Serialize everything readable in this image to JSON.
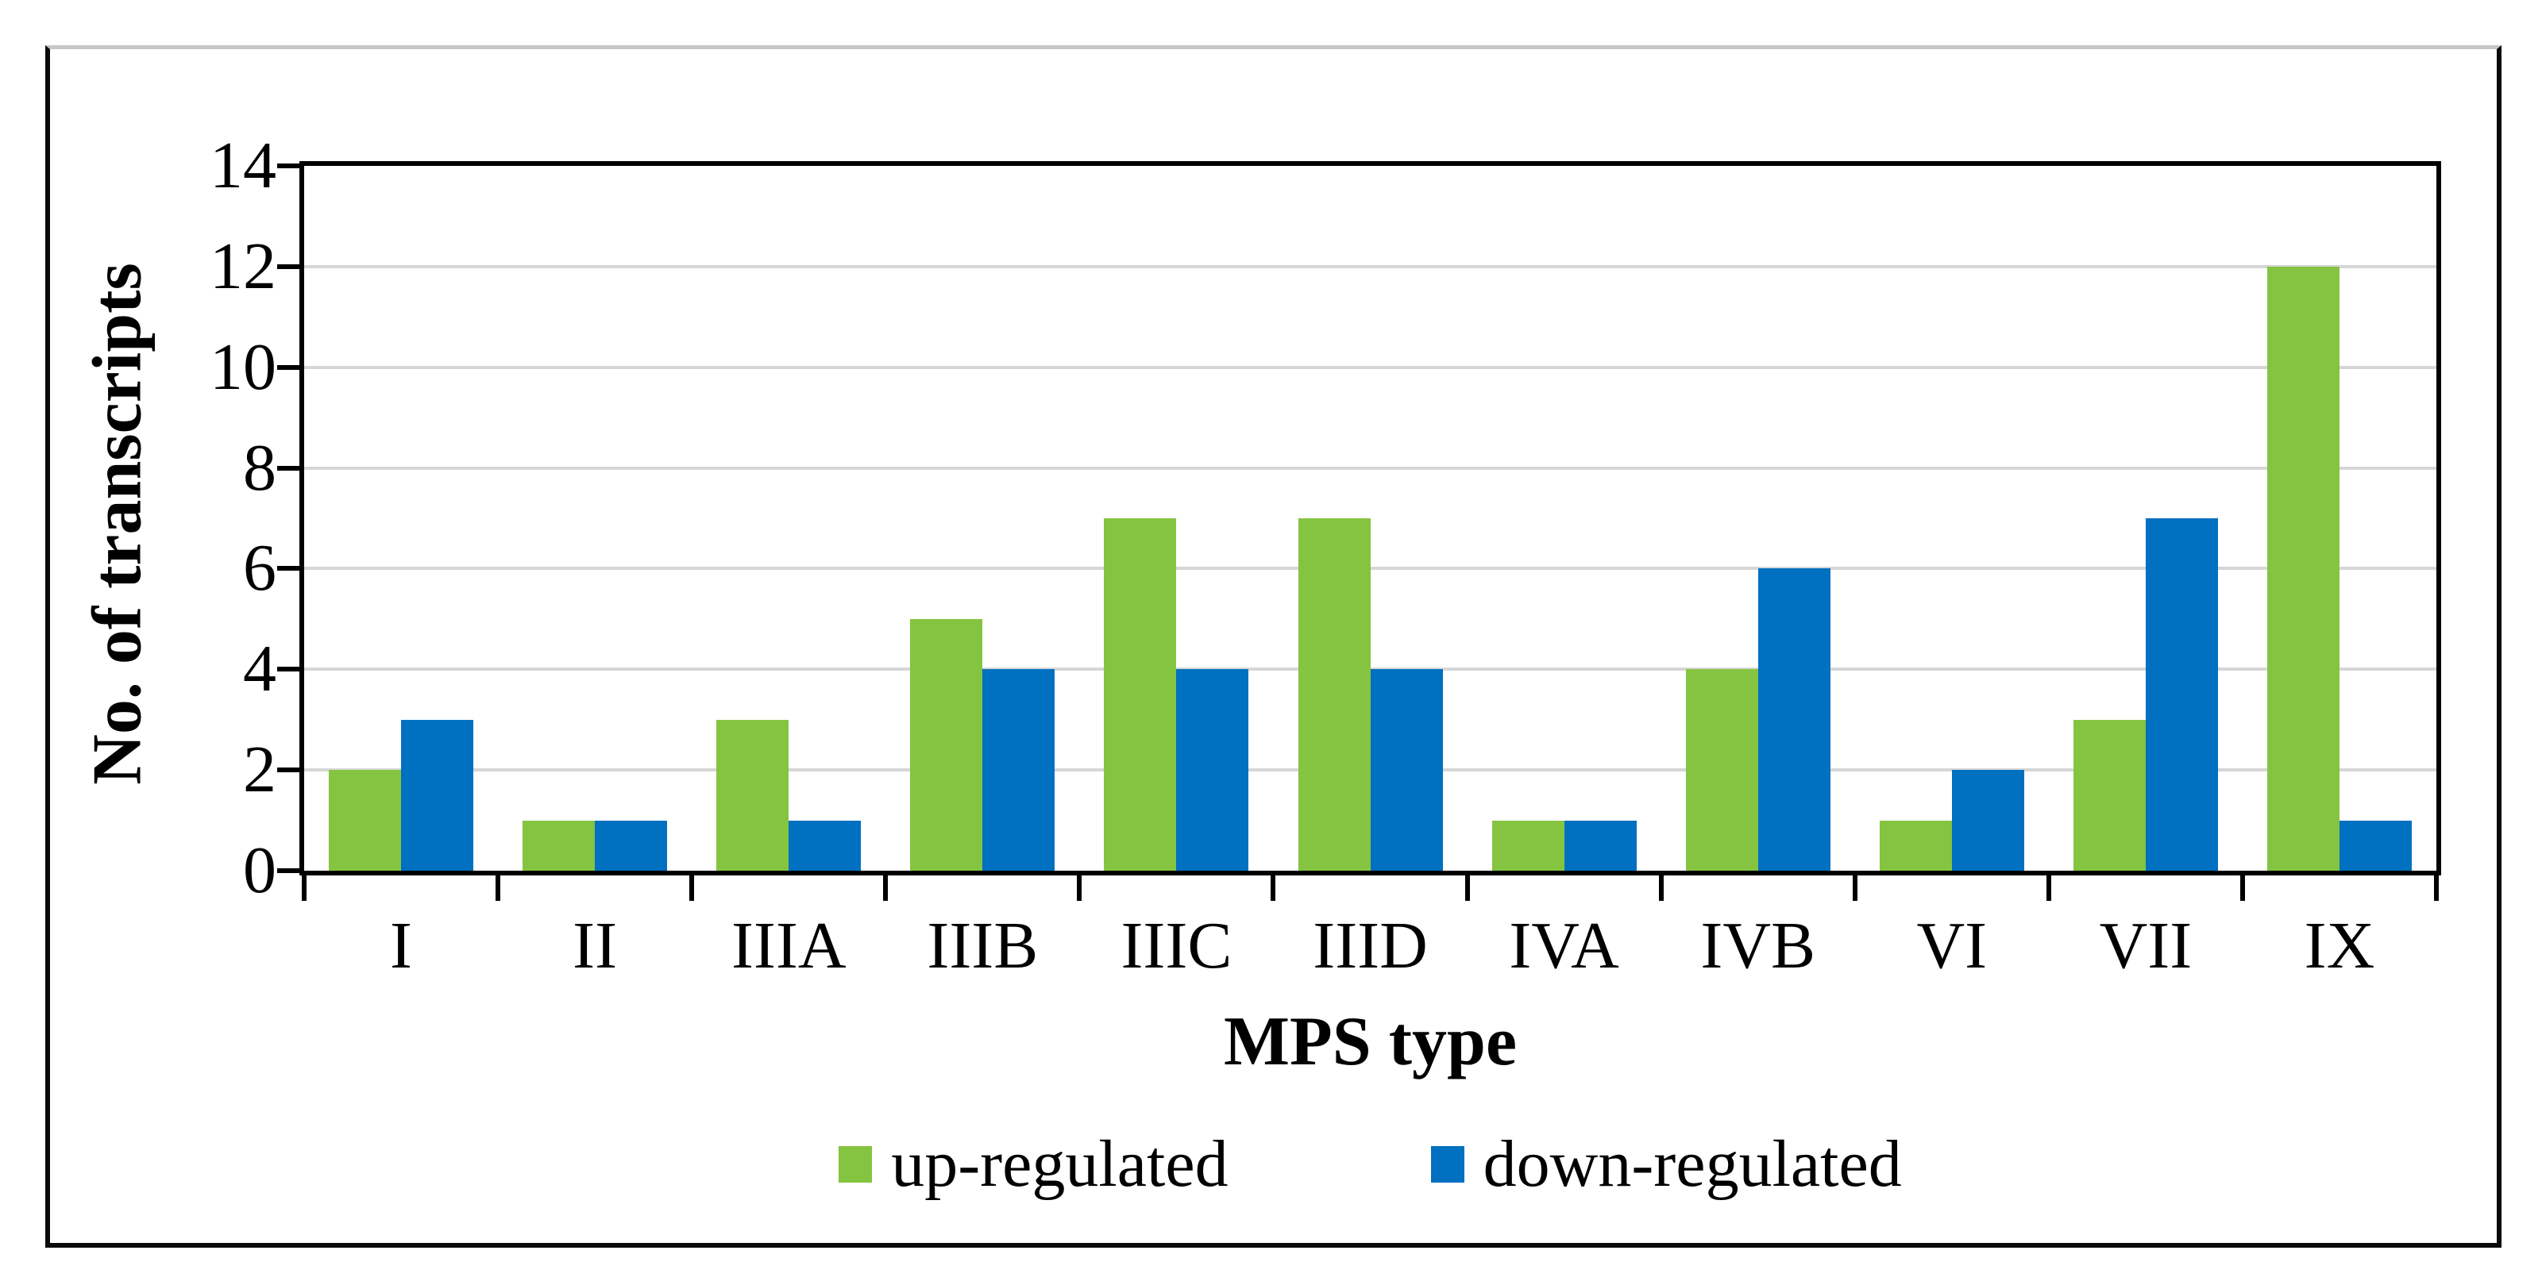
{
  "figure": {
    "y_axis_title": "No. of transcripts",
    "x_axis_title": "MPS type"
  },
  "legend": {
    "up_label": "up-regulated",
    "down_label": "down-regulated"
  },
  "colors": {
    "up": "#85C440",
    "down": "#0070C0",
    "gridline": "#d6d6d6",
    "axis": "#000000"
  },
  "chart_data": {
    "type": "bar",
    "categories": [
      "I",
      "II",
      "IIIA",
      "IIIB",
      "IIIC",
      "IIID",
      "IVA",
      "IVB",
      "VI",
      "VII",
      "IX"
    ],
    "series": [
      {
        "name": "up-regulated",
        "color": "#85C440",
        "values": [
          2,
          1,
          3,
          5,
          7,
          7,
          1,
          4,
          1,
          3,
          12
        ]
      },
      {
        "name": "down-regulated",
        "color": "#0070C0",
        "values": [
          3,
          1,
          1,
          4,
          4,
          4,
          1,
          6,
          2,
          7,
          1
        ]
      }
    ],
    "title": "",
    "xlabel": "MPS type",
    "ylabel": "No. of transcripts",
    "ylim": [
      0,
      14
    ],
    "yticks": [
      0,
      2,
      4,
      6,
      8,
      10,
      12,
      14
    ],
    "grid": true,
    "legend_position": "bottom"
  }
}
